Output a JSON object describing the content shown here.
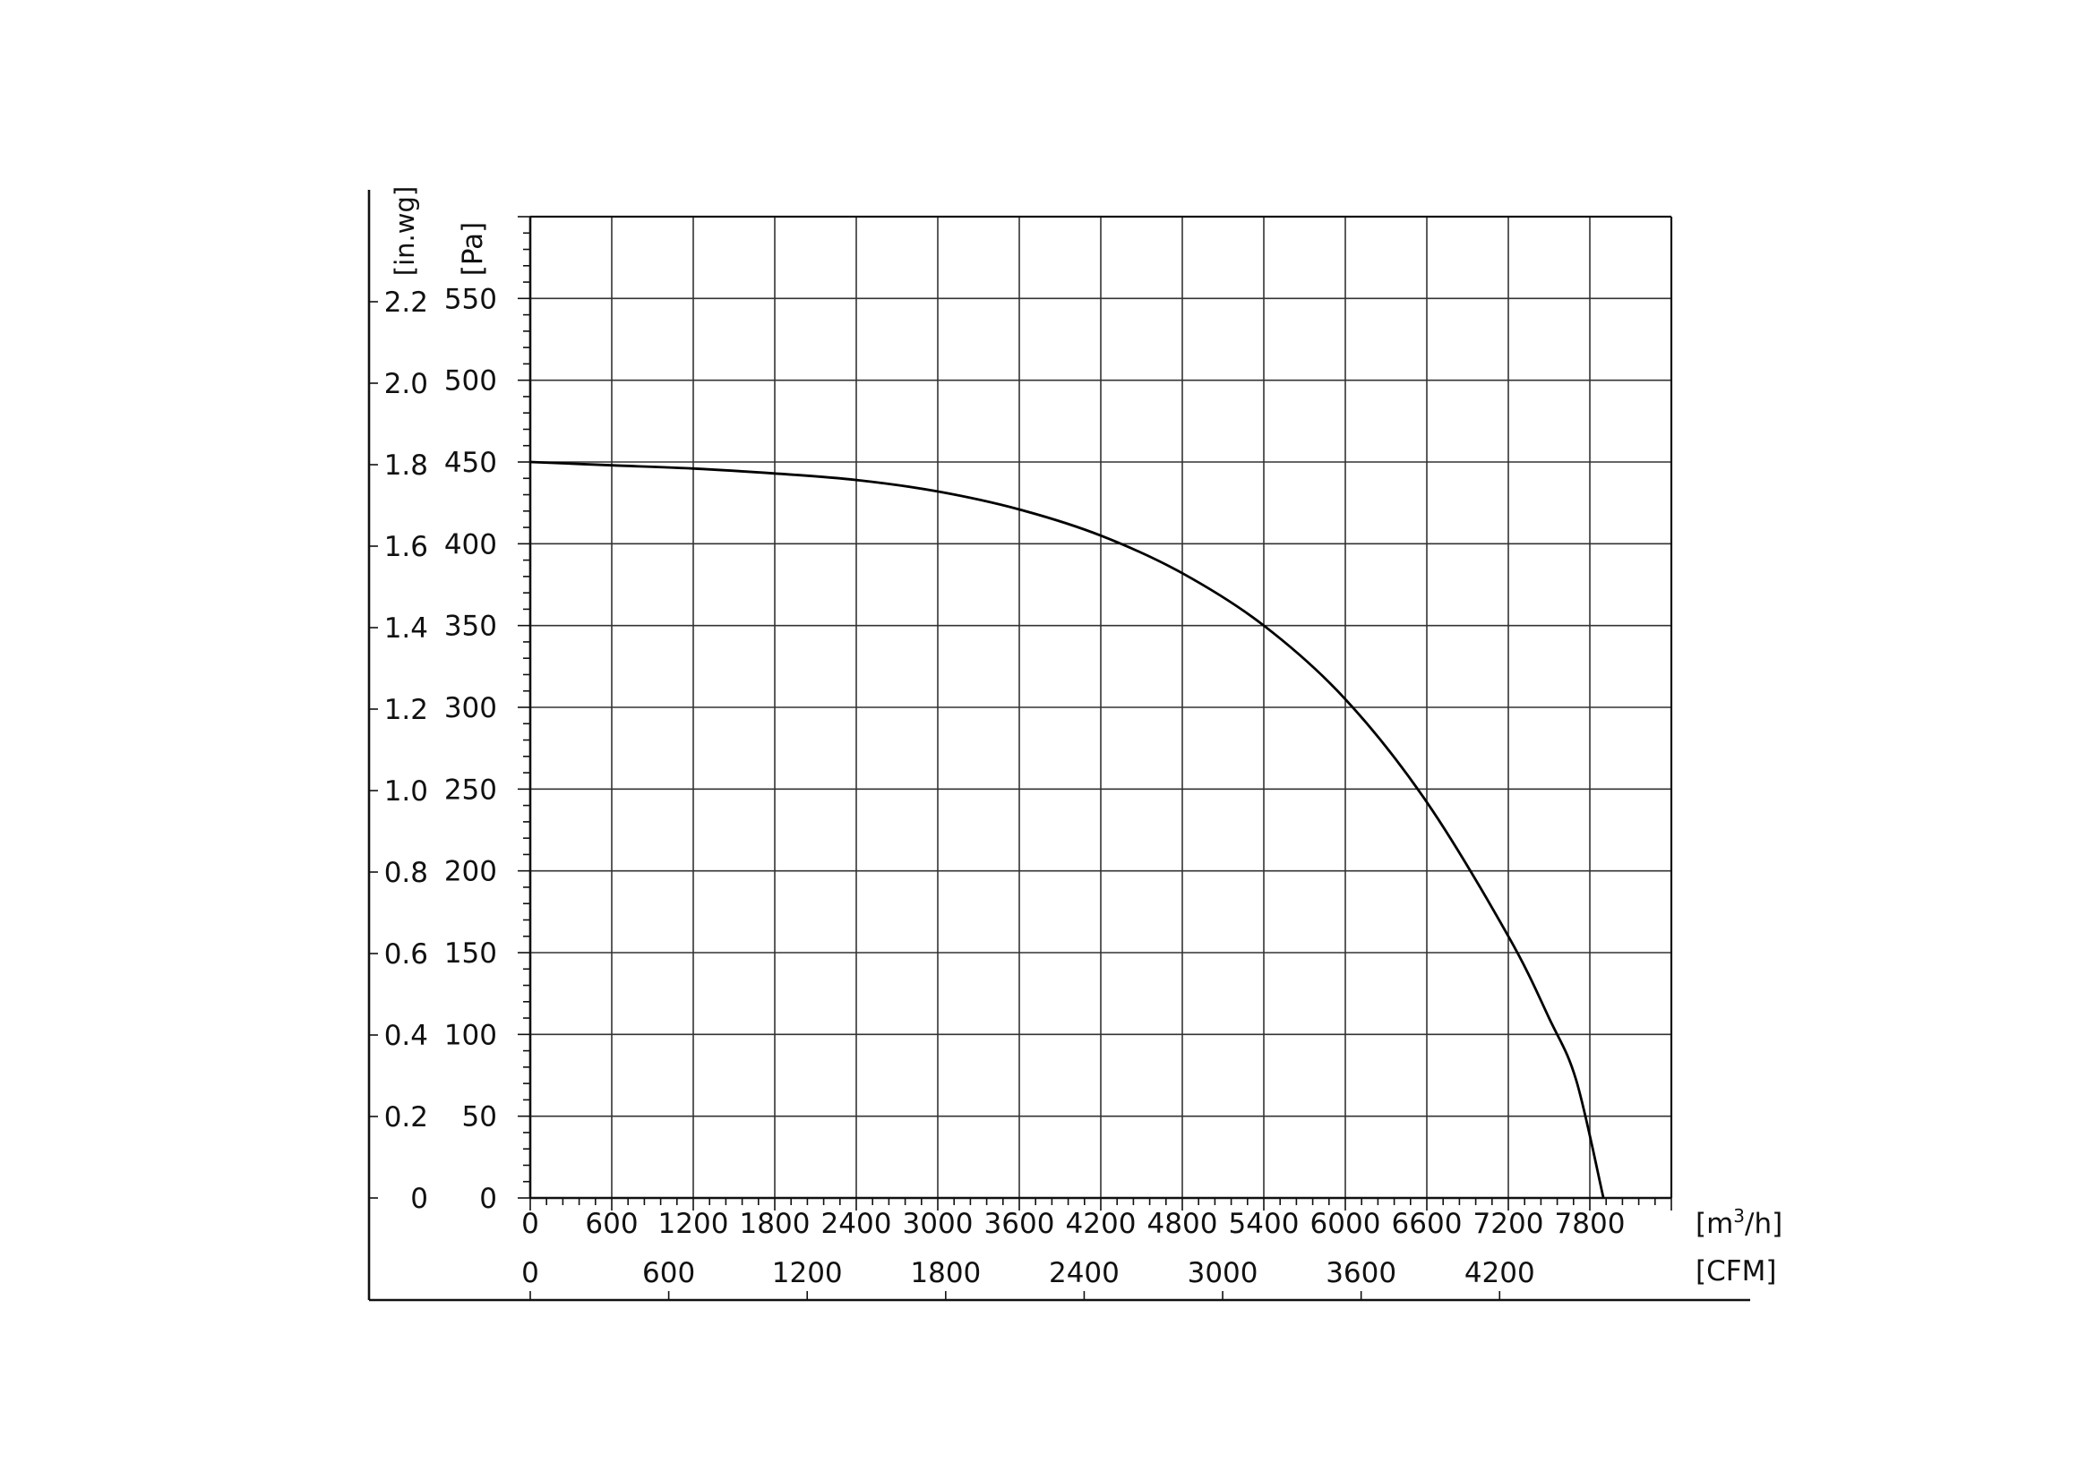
{
  "chart_data": {
    "type": "line",
    "title": "",
    "xlabel": "[m³/h]",
    "xlabel_parts": {
      "base": "[m",
      "sup": "3",
      "tail": "/h]"
    },
    "x2label": "[CFM]",
    "ylabel_left": "[in.wg]",
    "ylabel_right": "[Pa]",
    "xlim": [
      0,
      8400
    ],
    "ylim": [
      0,
      600
    ],
    "grid": true,
    "x_ticks": [
      "0",
      "600",
      "1200",
      "1800",
      "2400",
      "3000",
      "3600",
      "4200",
      "4800",
      "5400",
      "6000",
      "6600",
      "7200",
      "7800"
    ],
    "x_tick_values": [
      0,
      600,
      1200,
      1800,
      2400,
      3000,
      3600,
      4200,
      4800,
      5400,
      6000,
      6600,
      7200,
      7800
    ],
    "cfm_ticks": [
      "0",
      "600",
      "1200",
      "1800",
      "2400",
      "3000",
      "3600",
      "4200"
    ],
    "cfm_tick_values": [
      0,
      600,
      1200,
      1800,
      2400,
      3000,
      3600,
      4200
    ],
    "pa_ticks": [
      "0",
      "50",
      "100",
      "150",
      "200",
      "250",
      "300",
      "350",
      "400",
      "450",
      "500",
      "550"
    ],
    "pa_tick_values": [
      0,
      50,
      100,
      150,
      200,
      250,
      300,
      350,
      400,
      450,
      500,
      550
    ],
    "inwg_ticks": [
      "0",
      "0.2",
      "0.4",
      "0.6",
      "0.8",
      "1.0",
      "1.2",
      "1.4",
      "1.6",
      "1.8",
      "2.0",
      "2.2"
    ],
    "inwg_tick_values": [
      0,
      0.2,
      0.4,
      0.6,
      0.8,
      1.0,
      1.2,
      1.4,
      1.6,
      1.8,
      2.0,
      2.2
    ],
    "series": [
      {
        "x": [
          0,
          600,
          1200,
          1800,
          2400,
          3000,
          3600,
          4200,
          4800,
          5400,
          6000,
          6600,
          7200,
          7500,
          7700,
          7900
        ],
        "y": [
          450,
          448,
          446,
          443,
          439,
          432,
          421,
          405,
          382,
          350,
          305,
          242,
          160,
          110,
          72,
          0
        ]
      }
    ]
  }
}
